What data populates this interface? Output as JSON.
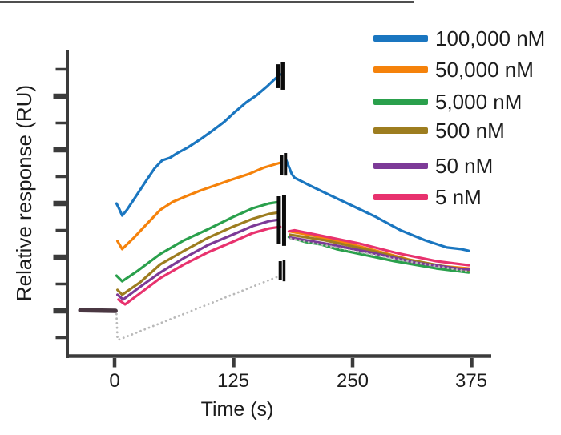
{
  "axes": {
    "xlabel": "Time (s)",
    "ylabel": "Relative response (RU)",
    "x_ticks": [
      {
        "t": 0,
        "label": "0"
      },
      {
        "t": 125,
        "label": "125"
      },
      {
        "t": 250,
        "label": "250"
      },
      {
        "t": 375,
        "label": "375"
      }
    ]
  },
  "legend": {
    "items": [
      {
        "label": "100,000 nM",
        "color": "#1a76c0"
      },
      {
        "label": "50,000 nM",
        "color": "#f5820b"
      },
      {
        "label": "5,000 nM",
        "color": "#2aa04c"
      },
      {
        "label": "500 nM",
        "color": "#9d7d1f"
      },
      {
        "label": "50 nM",
        "color": "#7c3a97"
      },
      {
        "label": "5 nM",
        "color": "#e8326e"
      }
    ]
  },
  "chart_data": {
    "type": "line",
    "title": "",
    "xlabel": "Time (s)",
    "ylabel": "Relative response (RU)",
    "x_axis": {
      "tick_values": [
        0,
        125,
        250,
        375
      ],
      "range": [
        -51,
        396
      ]
    },
    "y_axis": {
      "tick_labels_shown": false,
      "range": [
        -1.8,
        9.7
      ],
      "units": "arbitrary response units; 1 = one minor tick division; pre-injection baseline = 0"
    },
    "grid": false,
    "legend_position": "upper right",
    "pre_injection_baseline": {
      "points": [
        [
          -36,
          0.02
        ],
        [
          1,
          0.0
        ]
      ],
      "rendered_color": "#4a3742"
    },
    "series": [
      {
        "id": "blue",
        "label": "100,000 nM",
        "concentration_nM": 100000,
        "color": "#1a76c0",
        "association": [
          [
            2,
            4.0
          ],
          [
            5,
            3.79
          ],
          [
            8,
            3.55
          ],
          [
            13,
            3.76
          ],
          [
            23,
            4.3
          ],
          [
            33,
            4.84
          ],
          [
            42,
            5.31
          ],
          [
            50,
            5.61
          ],
          [
            58,
            5.7
          ],
          [
            66,
            5.88
          ],
          [
            77,
            6.09
          ],
          [
            90,
            6.39
          ],
          [
            103,
            6.72
          ],
          [
            115,
            7.04
          ],
          [
            126,
            7.4
          ],
          [
            138,
            7.76
          ],
          [
            149,
            8.03
          ],
          [
            160,
            8.36
          ],
          [
            168,
            8.63
          ],
          [
            174,
            8.81
          ]
        ],
        "dissociation": [
          [
            180,
            5.64
          ],
          [
            183,
            5.37
          ],
          [
            186,
            5.1
          ],
          [
            189,
            4.96
          ],
          [
            204,
            4.69
          ],
          [
            225,
            4.33
          ],
          [
            250,
            3.91
          ],
          [
            275,
            3.49
          ],
          [
            300,
            3.01
          ],
          [
            326,
            2.63
          ],
          [
            349,
            2.36
          ],
          [
            364,
            2.3
          ],
          [
            372,
            2.24
          ]
        ]
      },
      {
        "id": "orange",
        "label": "50,000 nM",
        "concentration_nM": 50000,
        "color": "#f5820b",
        "association": [
          [
            3,
            2.6
          ],
          [
            8,
            2.3
          ],
          [
            21,
            2.75
          ],
          [
            35,
            3.28
          ],
          [
            48,
            3.76
          ],
          [
            61,
            4.06
          ],
          [
            75,
            4.27
          ],
          [
            90,
            4.48
          ],
          [
            107,
            4.69
          ],
          [
            124,
            4.9
          ],
          [
            141,
            5.1
          ],
          [
            157,
            5.34
          ],
          [
            174,
            5.52
          ]
        ],
        "dissociation": [
          [
            184,
            2.96
          ],
          [
            208,
            2.81
          ],
          [
            242,
            2.54
          ],
          [
            275,
            2.24
          ],
          [
            309,
            1.91
          ],
          [
            343,
            1.67
          ],
          [
            372,
            1.58
          ]
        ]
      },
      {
        "id": "green",
        "label": "5,000 nM",
        "concentration_nM": 5000,
        "color": "#2aa04c",
        "association": [
          [
            2,
            1.31
          ],
          [
            8,
            1.1
          ],
          [
            23,
            1.46
          ],
          [
            48,
            2.12
          ],
          [
            73,
            2.63
          ],
          [
            98,
            3.04
          ],
          [
            124,
            3.49
          ],
          [
            145,
            3.82
          ],
          [
            162,
            4.0
          ],
          [
            173,
            4.06
          ]
        ],
        "dissociation": [
          [
            183,
            2.75
          ],
          [
            200,
            2.57
          ],
          [
            216,
            2.48
          ],
          [
            233,
            2.3
          ],
          [
            250,
            2.18
          ],
          [
            294,
            1.85
          ],
          [
            338,
            1.58
          ],
          [
            372,
            1.43
          ]
        ]
      },
      {
        "id": "dark-yellow",
        "label": "500 nM",
        "concentration_nM": 500,
        "color": "#9d7d1f",
        "association": [
          [
            3,
            0.78
          ],
          [
            8,
            0.6
          ],
          [
            27,
            1.07
          ],
          [
            48,
            1.73
          ],
          [
            73,
            2.24
          ],
          [
            98,
            2.72
          ],
          [
            124,
            3.13
          ],
          [
            145,
            3.43
          ],
          [
            162,
            3.61
          ],
          [
            173,
            3.67
          ]
        ],
        "dissociation": [
          [
            184,
            2.84
          ],
          [
            221,
            2.63
          ],
          [
            263,
            2.3
          ],
          [
            307,
            1.91
          ],
          [
            349,
            1.64
          ],
          [
            372,
            1.52
          ]
        ]
      },
      {
        "id": "purple",
        "label": "50 nM",
        "concentration_nM": 50,
        "color": "#7c3a97",
        "association": [
          [
            3,
            0.6
          ],
          [
            9,
            0.42
          ],
          [
            27,
            0.9
          ],
          [
            48,
            1.43
          ],
          [
            73,
            1.97
          ],
          [
            98,
            2.45
          ],
          [
            124,
            2.84
          ],
          [
            145,
            3.16
          ],
          [
            162,
            3.34
          ],
          [
            173,
            3.4
          ]
        ],
        "dissociation": [
          [
            184,
            2.73
          ],
          [
            226,
            2.48
          ],
          [
            272,
            2.15
          ],
          [
            317,
            1.79
          ],
          [
            359,
            1.58
          ],
          [
            372,
            1.54
          ]
        ]
      },
      {
        "id": "pink",
        "label": "5 nM",
        "concentration_nM": 5,
        "color": "#e8326e",
        "association": [
          [
            4,
            0.42
          ],
          [
            11,
            0.24
          ],
          [
            27,
            0.66
          ],
          [
            48,
            1.22
          ],
          [
            73,
            1.73
          ],
          [
            98,
            2.18
          ],
          [
            124,
            2.57
          ],
          [
            145,
            2.9
          ],
          [
            162,
            3.07
          ],
          [
            174,
            3.13
          ]
        ],
        "dissociation": [
          [
            183,
            2.96
          ],
          [
            189,
            3.0
          ],
          [
            216,
            2.81
          ],
          [
            257,
            2.51
          ],
          [
            297,
            2.15
          ],
          [
            338,
            1.85
          ],
          [
            372,
            1.7
          ]
        ]
      }
    ],
    "reference_blank": {
      "style": "dotted",
      "color": "#b9b9b9",
      "drop": [
        [
          2,
          -0.12
        ],
        [
          3,
          -1.07
        ]
      ],
      "rise": [
        [
          5,
          -1.07
        ],
        [
          172,
          1.28
        ]
      ],
      "dissociation": [
        [
          185,
          2.69
        ],
        [
          250,
          2.24
        ],
        [
          317,
          1.79
        ],
        [
          372,
          1.46
        ]
      ]
    },
    "spike_artifacts": [
      {
        "t": 171.5,
        "ru_top": 9.19,
        "ru_bottom": 8.3,
        "w": 4.5
      },
      {
        "t": 176.5,
        "ru_top": 9.28,
        "ru_bottom": 8.24,
        "w": 4.5
      },
      {
        "t": 175.5,
        "ru_top": 5.82,
        "ru_bottom": 5.07,
        "w": 4
      },
      {
        "t": 179.5,
        "ru_top": 5.88,
        "ru_bottom": 5.04,
        "w": 4
      },
      {
        "t": 172.5,
        "ru_top": 4.27,
        "ru_bottom": 2.48,
        "w": 5
      },
      {
        "t": 178.0,
        "ru_top": 4.33,
        "ru_bottom": 2.42,
        "w": 5
      },
      {
        "t": 174.0,
        "ru_top": 1.85,
        "ru_bottom": 1.16,
        "w": 4
      },
      {
        "t": 178.0,
        "ru_top": 1.88,
        "ru_bottom": 1.1,
        "w": 3.5
      }
    ]
  }
}
